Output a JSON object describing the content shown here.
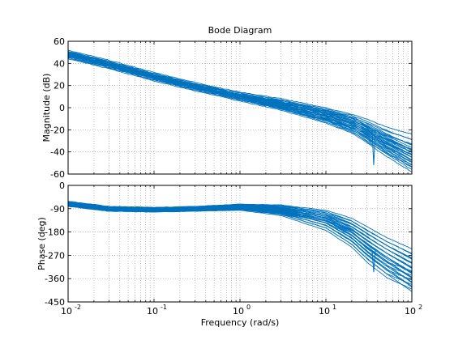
{
  "chart_data": {
    "type": "line",
    "title": "Bode Diagram",
    "xlabel": "Frequency  (rad/s)",
    "x_scale": "log",
    "xlim": [
      0.01,
      100
    ],
    "x_ticks": [
      0.01,
      0.1,
      1,
      10,
      100
    ],
    "x_tick_labels": [
      {
        "base": "10",
        "exp": "-2"
      },
      {
        "base": "10",
        "exp": "-1"
      },
      {
        "base": "10",
        "exp": "0"
      },
      {
        "base": "10",
        "exp": "1"
      },
      {
        "base": "10",
        "exp": "2"
      }
    ],
    "grid": "dotted, major and minor",
    "line_color": "#0072bd",
    "subplots": [
      {
        "id": "magnitude",
        "ylabel": "Magnitude (dB)",
        "ylim": [
          -60,
          60
        ],
        "y_ticks": [
          -60,
          -40,
          -20,
          0,
          20,
          40,
          60
        ],
        "y_tick_labels": [
          "-60",
          "-40",
          "-20",
          "0",
          "20",
          "40",
          "60"
        ],
        "x": [
          0.01,
          0.03,
          0.1,
          0.3,
          1,
          3,
          10,
          20,
          30,
          50,
          100
        ],
        "series": [
          {
            "values": [
              50,
              41,
              30,
              21,
              12,
              5,
              -5,
              -12,
              -17,
              -25,
              -33
            ]
          },
          {
            "values": [
              49,
              40,
              29,
              20,
              11,
              4,
              -6,
              -13,
              -19,
              -28,
              -38
            ]
          },
          {
            "values": [
              48,
              39,
              28,
              19,
              10,
              3,
              -7,
              -14,
              -21,
              -31,
              -43
            ]
          },
          {
            "values": [
              47,
              38,
              27,
              18,
              9,
              2,
              -8,
              -16,
              -23,
              -34,
              -47
            ]
          },
          {
            "values": [
              48,
              39,
              28,
              19,
              10,
              2,
              -7,
              -15,
              -24,
              -33,
              -45
            ]
          },
          {
            "values": [
              46,
              37,
              26,
              17,
              8,
              1,
              -9,
              -17,
              -25,
              -36,
              -49
            ]
          }
        ],
        "notch_x": 36,
        "notch_min": -52
      },
      {
        "id": "phase",
        "ylabel": "Phase (deg)",
        "ylim": [
          -450,
          0
        ],
        "y_ticks": [
          -450,
          -360,
          -270,
          -180,
          -90,
          0
        ],
        "y_tick_labels": [
          "-450",
          "-360",
          "-270",
          "-180",
          "-90",
          "0"
        ],
        "x": [
          0.01,
          0.03,
          0.1,
          0.3,
          1,
          3,
          10,
          20,
          30,
          50,
          100
        ],
        "series": [
          {
            "values": [
              -68,
              -88,
              -92,
              -88,
              -80,
              -88,
              -115,
              -150,
              -185,
              -230,
              -280
            ]
          },
          {
            "values": [
              -70,
              -90,
              -93,
              -90,
              -82,
              -92,
              -125,
              -170,
              -210,
              -260,
              -320
            ]
          },
          {
            "values": [
              -72,
              -91,
              -94,
              -91,
              -84,
              -96,
              -135,
              -190,
              -240,
              -290,
              -355
            ]
          },
          {
            "values": [
              -73,
              -92,
              -95,
              -92,
              -86,
              -100,
              -145,
              -205,
              -255,
              -310,
              -375
            ]
          },
          {
            "values": [
              -71,
              -90,
              -93,
              -89,
              -81,
              -90,
              -120,
              -160,
              -200,
              -245,
              -300
            ]
          },
          {
            "values": [
              -74,
              -93,
              -96,
              -93,
              -88,
              -104,
              -155,
              -215,
              -270,
              -325,
              -365
            ]
          }
        ],
        "notch_x": 36,
        "notch_min": -335
      }
    ]
  }
}
